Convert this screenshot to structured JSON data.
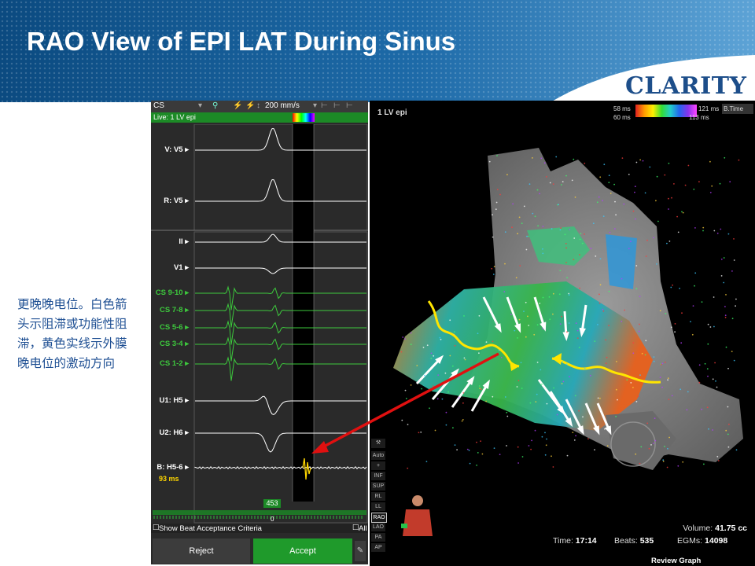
{
  "slide": {
    "title": "RAO View of EPI LAT During Sinus",
    "brand": "CLARITY",
    "caption": "更晚晚电位。白色箭头示阻滞或功能性阻滞，黄色实线示外膜晚电位的激动方向"
  },
  "left_panel": {
    "toolbar": {
      "view_select": "CS",
      "speed": "200 mm/s"
    },
    "live_label": "Live: 1 LV epi",
    "channels": [
      {
        "label": "V: V5",
        "color": "#ffffff"
      },
      {
        "label": "R: V5",
        "color": "#ffffff"
      },
      {
        "label": "II",
        "color": "#ffffff"
      },
      {
        "label": "V1",
        "color": "#ffffff"
      },
      {
        "label": "CS 9-10",
        "color": "#3dc93d"
      },
      {
        "label": "CS 7-8",
        "color": "#3dc93d"
      },
      {
        "label": "CS 5-6",
        "color": "#3dc93d"
      },
      {
        "label": "CS 3-4",
        "color": "#3dc93d"
      },
      {
        "label": "CS 1-2",
        "color": "#3dc93d"
      },
      {
        "label": "U1: H5",
        "color": "#ffffff"
      },
      {
        "label": "U2: H6",
        "color": "#ffffff"
      },
      {
        "label": "B: H5-6",
        "color": "#ffffff"
      }
    ],
    "late_potential_ms": "93 ms",
    "beat_number": "453",
    "beat_zero": "0",
    "show_criteria": "Show Beat Acceptance Criteria",
    "all_label": "All",
    "reject_label": "Reject",
    "accept_label": "Accept"
  },
  "map_panel": {
    "map_name": "1 LV epi",
    "scale": {
      "min_top": "58 ms",
      "min_bottom": "60 ms",
      "max_top": "121 ms",
      "max_bottom": "113 ms",
      "mode": "B.Time"
    },
    "side_buttons": [
      "Auto",
      "+",
      "INF",
      "SUP",
      "RL",
      "LL",
      "RAO",
      "LAO",
      "PA",
      "AP"
    ],
    "active_view": "RAO",
    "stats": {
      "volume_label": "Volume:",
      "volume_value": "41.75 cc",
      "time_label": "Time:",
      "time_value": "17:14",
      "beats_label": "Beats:",
      "beats_value": "535",
      "egms_label": "EGMs:",
      "egms_value": "14098"
    },
    "review_graph": "Review Graph"
  },
  "colors": {
    "banner_dark": "#0f4f86",
    "brand": "#1d4e8a",
    "caption": "#1e4f93",
    "accept": "#1f9a2b",
    "cs_trace": "#3dc93d",
    "late_potential": "#ffd700",
    "red_arrow": "#e01010"
  }
}
